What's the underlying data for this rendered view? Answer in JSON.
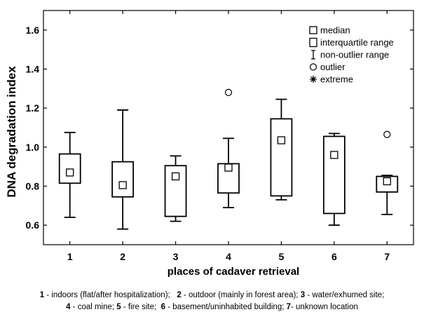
{
  "chart_data": {
    "type": "boxplot",
    "xlabel": "places of cadaver retrieval",
    "ylabel": "DNA degradation index",
    "ylim": [
      0.5,
      1.7
    ],
    "yticks": [
      0.6,
      0.8,
      1.0,
      1.2,
      1.4,
      1.6
    ],
    "ytick_labels": [
      "0.6",
      "0.8",
      "1.0",
      "1.2",
      "1.4",
      "1.6"
    ],
    "categories": [
      "1",
      "2",
      "3",
      "4",
      "5",
      "6",
      "7"
    ],
    "boxes": [
      {
        "category": "1",
        "min": 0.64,
        "q1": 0.815,
        "median": 0.87,
        "q3": 0.965,
        "max": 1.075,
        "outliers": []
      },
      {
        "category": "2",
        "min": 0.58,
        "q1": 0.745,
        "median": 0.805,
        "q3": 0.925,
        "max": 1.19,
        "outliers": []
      },
      {
        "category": "3",
        "min": 0.62,
        "q1": 0.645,
        "median": 0.85,
        "q3": 0.905,
        "max": 0.955,
        "outliers": []
      },
      {
        "category": "4",
        "min": 0.69,
        "q1": 0.765,
        "median": 0.895,
        "q3": 0.915,
        "max": 1.045,
        "outliers": [
          1.28
        ]
      },
      {
        "category": "5",
        "min": 0.73,
        "q1": 0.75,
        "median": 1.035,
        "q3": 1.145,
        "max": 1.245,
        "outliers": []
      },
      {
        "category": "6",
        "min": 0.6,
        "q1": 0.66,
        "median": 0.96,
        "q3": 1.055,
        "max": 1.07,
        "outliers": []
      },
      {
        "category": "7",
        "min": 0.655,
        "q1": 0.77,
        "median": 0.825,
        "q3": 0.85,
        "max": 0.855,
        "outliers": [
          1.065
        ]
      }
    ],
    "legend": {
      "position": "top-right",
      "items": [
        {
          "symbol": "median-square",
          "label": "median"
        },
        {
          "symbol": "box",
          "label": "interquartile range"
        },
        {
          "symbol": "whisker",
          "label": "non-outlier range"
        },
        {
          "symbol": "circle",
          "label": "outlier"
        },
        {
          "symbol": "asterisk",
          "label": "extreme"
        }
      ]
    },
    "grid": false
  },
  "footnote": {
    "line1": [
      {
        "num": "1",
        "text": " - indoors (flat/after hospitalization);   "
      },
      {
        "num": "2",
        "text": " - outdoor (mainly in forest area); "
      },
      {
        "num": "3",
        "text": " - water/exhumed site;"
      }
    ],
    "line2": [
      {
        "num": "4",
        "text": " - coal mine; "
      },
      {
        "num": "5",
        "text": " - fire site;  "
      },
      {
        "num": "6",
        "text": " - basement/uninhabited building; "
      },
      {
        "num": "7",
        "text": "- unknown location"
      }
    ]
  }
}
